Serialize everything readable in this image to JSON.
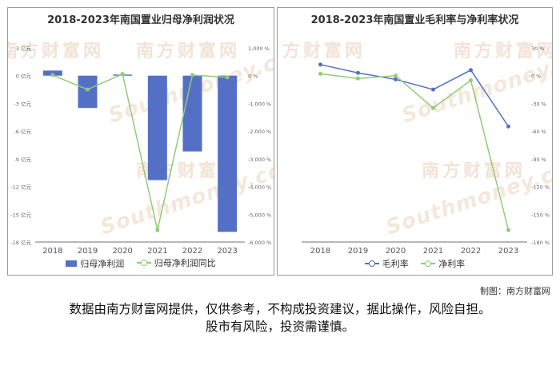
{
  "watermark": {
    "cn": "南方财富网",
    "en": "Southmoney.com"
  },
  "credit": "制图：南方财富网",
  "disclaimer": {
    "line1": "数据由南方财富网提供，仅供参考，不构成投资建议，据此操作，风险自担。",
    "line2": "股市有风险，投资需谨慎。"
  },
  "chart_data": [
    {
      "type": "bar",
      "title": "2018-2023年南国置业归母净利润状况",
      "categories": [
        "2018",
        "2019",
        "2020",
        "2021",
        "2022",
        "2023"
      ],
      "series": [
        {
          "name": "归母净利润",
          "type": "bar",
          "axis": "left",
          "color": "#5470c6",
          "values": [
            0.55,
            -3.5,
            0.12,
            -11.3,
            -8.2,
            -16.9
          ]
        },
        {
          "name": "归母净利润同比",
          "type": "line",
          "axis": "right",
          "color": "#91cc75",
          "values": [
            20,
            -500,
            60,
            -5570,
            20,
            -60
          ]
        }
      ],
      "left_axis": {
        "min": -18,
        "max": 3,
        "ticks": [
          3,
          0,
          -3,
          -6,
          -9,
          -12,
          -15,
          -18
        ],
        "unit": "亿元",
        "tick_labels": [
          "3 亿元",
          "0 亿元",
          "-3 亿元",
          "-6 亿元",
          "-9 亿元",
          "-12 亿元",
          "-15 亿元",
          "-18 亿元"
        ]
      },
      "right_axis": {
        "min": -6000,
        "max": 1000,
        "ticks": [
          1000,
          0,
          -1000,
          -2000,
          -3000,
          -4000,
          -5000,
          -6000
        ],
        "unit": "%",
        "tick_labels": [
          "1,000 %",
          "0 %",
          "-1,000 %",
          "-2,000 %",
          "-3,000 %",
          "-4,000 %",
          "-5,000 %",
          "-6,000 %"
        ]
      },
      "grid": false,
      "legend_position": "bottom"
    },
    {
      "type": "line",
      "title": "2018-2023年南国置业毛利率与净利率状况",
      "categories": [
        "2018",
        "2019",
        "2020",
        "2021",
        "2022",
        "2023"
      ],
      "series": [
        {
          "name": "毛利率",
          "color": "#5470c6",
          "values": [
            12,
            3,
            -4,
            -15,
            6,
            -55
          ]
        },
        {
          "name": "净利率",
          "color": "#91cc75",
          "values": [
            2,
            -3,
            0,
            -35,
            -5,
            -167
          ]
        }
      ],
      "right_axis": {
        "min": -180,
        "max": 30,
        "ticks": [
          30,
          0,
          -30,
          -60,
          -90,
          -120,
          -150,
          -180
        ],
        "unit": "%",
        "tick_labels": [
          "30 %",
          "0 %",
          "-30 %",
          "-60 %",
          "-90 %",
          "-120 %",
          "-150 %",
          "-180 %"
        ]
      },
      "grid": false,
      "legend_position": "bottom"
    }
  ]
}
